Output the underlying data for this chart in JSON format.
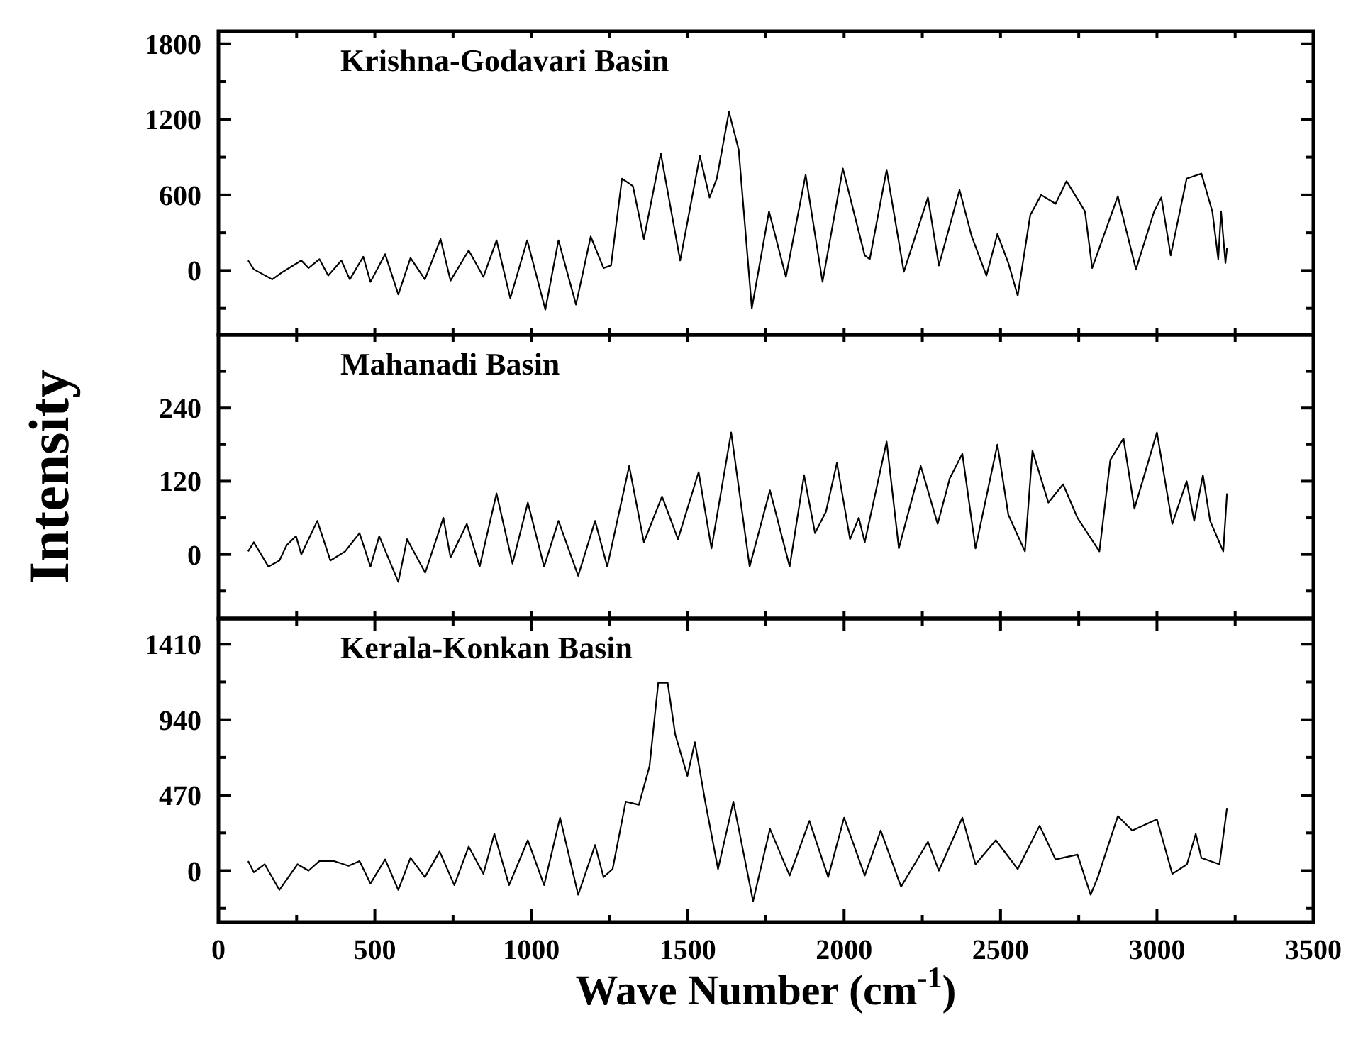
{
  "chart_data": [
    {
      "type": "line",
      "title": "Krishna-Godavari Basin",
      "tick_labels": "y",
      "color": "#000000",
      "line_style": "solid",
      "marker": "none",
      "xlim": [
        0,
        3500
      ],
      "xticks": [
        {
          "value": 0,
          "label": null
        },
        {
          "value": 250,
          "label": null
        },
        {
          "value": 500,
          "label": null
        },
        {
          "value": 750,
          "label": null
        },
        {
          "value": 1000,
          "label": null
        },
        {
          "value": 1250,
          "label": null
        },
        {
          "value": 1500,
          "label": null
        },
        {
          "value": 1750,
          "label": null
        },
        {
          "value": 2000,
          "label": null
        },
        {
          "value": 2250,
          "label": null
        },
        {
          "value": 2500,
          "label": null
        },
        {
          "value": 2750,
          "label": null
        },
        {
          "value": 3000,
          "label": null
        },
        {
          "value": 3250,
          "label": null
        },
        {
          "value": 3500,
          "label": null
        }
      ],
      "ylim": [
        -510,
        1900
      ],
      "yticks": [
        {
          "value": -300,
          "label": null
        },
        0,
        {
          "value": 300,
          "label": null
        },
        600,
        {
          "value": 900,
          "label": null
        },
        1200,
        {
          "value": 1500,
          "label": null
        },
        1800
      ],
      "x": [
        95,
        113,
        172,
        206,
        265,
        288,
        323,
        351,
        393,
        420,
        463,
        486,
        533,
        575,
        614,
        660,
        710,
        742,
        800,
        847,
        889,
        933,
        987,
        1045,
        1087,
        1143,
        1190,
        1231,
        1255,
        1290,
        1325,
        1360,
        1414,
        1476,
        1539,
        1570,
        1593,
        1632,
        1663,
        1705,
        1760,
        1814,
        1877,
        1931,
        1996,
        2066,
        2082,
        2136,
        2191,
        2268,
        2303,
        2369,
        2408,
        2455,
        2490,
        2525,
        2555,
        2595,
        2630,
        2676,
        2711,
        2770,
        2793,
        2875,
        2933,
        2991,
        3014,
        3044,
        3095,
        3142,
        3177,
        3196,
        3205,
        3219,
        3224
      ],
      "values": [
        80,
        10,
        -70,
        -10,
        80,
        20,
        90,
        -40,
        80,
        -70,
        110,
        -90,
        130,
        -190,
        100,
        -70,
        250,
        -80,
        160,
        -50,
        240,
        -220,
        240,
        -310,
        240,
        -270,
        270,
        20,
        40,
        730,
        670,
        250,
        930,
        80,
        910,
        580,
        730,
        1260,
        960,
        -300,
        470,
        -50,
        760,
        -90,
        810,
        120,
        90,
        800,
        -10,
        580,
        40,
        640,
        270,
        -40,
        290,
        60,
        -200,
        440,
        600,
        530,
        710,
        470,
        20,
        590,
        10,
        470,
        580,
        120,
        730,
        770,
        470,
        90,
        470,
        60,
        180
      ]
    },
    {
      "type": "line",
      "title": "Mahanadi Basin",
      "tick_labels": "y",
      "ylabel": "Intensity",
      "color": "#000000",
      "line_style": "solid",
      "marker": "none",
      "xlim": [
        0,
        3500
      ],
      "xticks": [
        {
          "value": 0,
          "label": null
        },
        {
          "value": 250,
          "label": null
        },
        {
          "value": 500,
          "label": null
        },
        {
          "value": 750,
          "label": null
        },
        {
          "value": 1000,
          "label": null
        },
        {
          "value": 1250,
          "label": null
        },
        {
          "value": 1500,
          "label": null
        },
        {
          "value": 1750,
          "label": null
        },
        {
          "value": 2000,
          "label": null
        },
        {
          "value": 2250,
          "label": null
        },
        {
          "value": 2500,
          "label": null
        },
        {
          "value": 2750,
          "label": null
        },
        {
          "value": 3000,
          "label": null
        },
        {
          "value": 3250,
          "label": null
        },
        {
          "value": 3500,
          "label": null
        }
      ],
      "ylim": [
        -105,
        360
      ],
      "yticks": [
        {
          "value": -60,
          "label": null
        },
        0,
        {
          "value": 60,
          "label": null
        },
        120,
        {
          "value": 180,
          "label": null
        },
        240,
        {
          "value": 300,
          "label": null
        }
      ],
      "x": [
        95,
        113,
        160,
        195,
        218,
        248,
        265,
        316,
        358,
        405,
        451,
        486,
        514,
        575,
        603,
        661,
        719,
        742,
        794,
        835,
        889,
        940,
        989,
        1041,
        1087,
        1150,
        1204,
        1243,
        1313,
        1360,
        1418,
        1469,
        1535,
        1576,
        1639,
        1698,
        1763,
        1826,
        1872,
        1907,
        1942,
        1977,
        2019,
        2047,
        2066,
        2136,
        2175,
        2245,
        2299,
        2338,
        2378,
        2420,
        2490,
        2525,
        2578,
        2602,
        2653,
        2700,
        2746,
        2816,
        2851,
        2893,
        2928,
        3000,
        3049,
        3095,
        3119,
        3147,
        3170,
        3212,
        3224
      ],
      "values": [
        5,
        20,
        -20,
        -10,
        15,
        30,
        0,
        55,
        -10,
        5,
        35,
        -20,
        30,
        -45,
        25,
        -30,
        60,
        -5,
        50,
        -20,
        100,
        -15,
        85,
        -20,
        55,
        -35,
        55,
        -20,
        145,
        20,
        95,
        25,
        135,
        10,
        200,
        -20,
        105,
        -20,
        130,
        35,
        70,
        150,
        25,
        60,
        20,
        185,
        10,
        145,
        50,
        125,
        165,
        10,
        180,
        65,
        5,
        170,
        85,
        115,
        60,
        5,
        155,
        190,
        75,
        200,
        50,
        120,
        55,
        130,
        55,
        5,
        100
      ]
    },
    {
      "type": "line",
      "title": "Kerala-Konkan Basin",
      "xlabel": "Wave Number (cm$^{-1}$)",
      "color": "#000000",
      "line_style": "solid",
      "marker": "none",
      "xlim": [
        0,
        3500
      ],
      "xticks": [
        0,
        {
          "value": 250,
          "label": null
        },
        500,
        {
          "value": 750,
          "label": null
        },
        1000,
        {
          "value": 1250,
          "label": null
        },
        1500,
        {
          "value": 1750,
          "label": null
        },
        2000,
        {
          "value": 2250,
          "label": null
        },
        2500,
        {
          "value": 2750,
          "label": null
        },
        3000,
        {
          "value": 3250,
          "label": null
        },
        3500
      ],
      "ylim": [
        -320,
        1570
      ],
      "yticks": [
        {
          "value": -235,
          "label": null
        },
        0,
        {
          "value": 235,
          "label": null
        },
        470,
        {
          "value": 705,
          "label": null
        },
        940,
        {
          "value": 1175,
          "label": null
        },
        1410
      ],
      "x": [
        95,
        113,
        148,
        195,
        253,
        288,
        323,
        370,
        416,
        451,
        486,
        533,
        575,
        614,
        660,
        707,
        754,
        800,
        847,
        882,
        929,
        989,
        1041,
        1092,
        1150,
        1204,
        1231,
        1260,
        1302,
        1344,
        1378,
        1406,
        1436,
        1460,
        1499,
        1523,
        1557,
        1597,
        1646,
        1709,
        1763,
        1826,
        1889,
        1949,
        2000,
        2066,
        2117,
        2182,
        2268,
        2303,
        2378,
        2420,
        2485,
        2555,
        2625,
        2676,
        2746,
        2788,
        2811,
        2875,
        2921,
        3000,
        3049,
        3096,
        3124,
        3142,
        3200,
        3224
      ],
      "values": [
        60,
        -10,
        40,
        -120,
        40,
        0,
        60,
        60,
        30,
        60,
        -80,
        70,
        -120,
        80,
        -40,
        120,
        -90,
        150,
        -20,
        230,
        -90,
        190,
        -90,
        330,
        -150,
        160,
        -40,
        10,
        430,
        410,
        650,
        1170,
        1170,
        850,
        590,
        800,
        420,
        10,
        430,
        -190,
        260,
        -30,
        310,
        -40,
        330,
        -30,
        250,
        -100,
        180,
        0,
        330,
        40,
        190,
        10,
        280,
        70,
        100,
        -150,
        -40,
        340,
        250,
        320,
        -20,
        40,
        230,
        80,
        40,
        390
      ]
    }
  ]
}
